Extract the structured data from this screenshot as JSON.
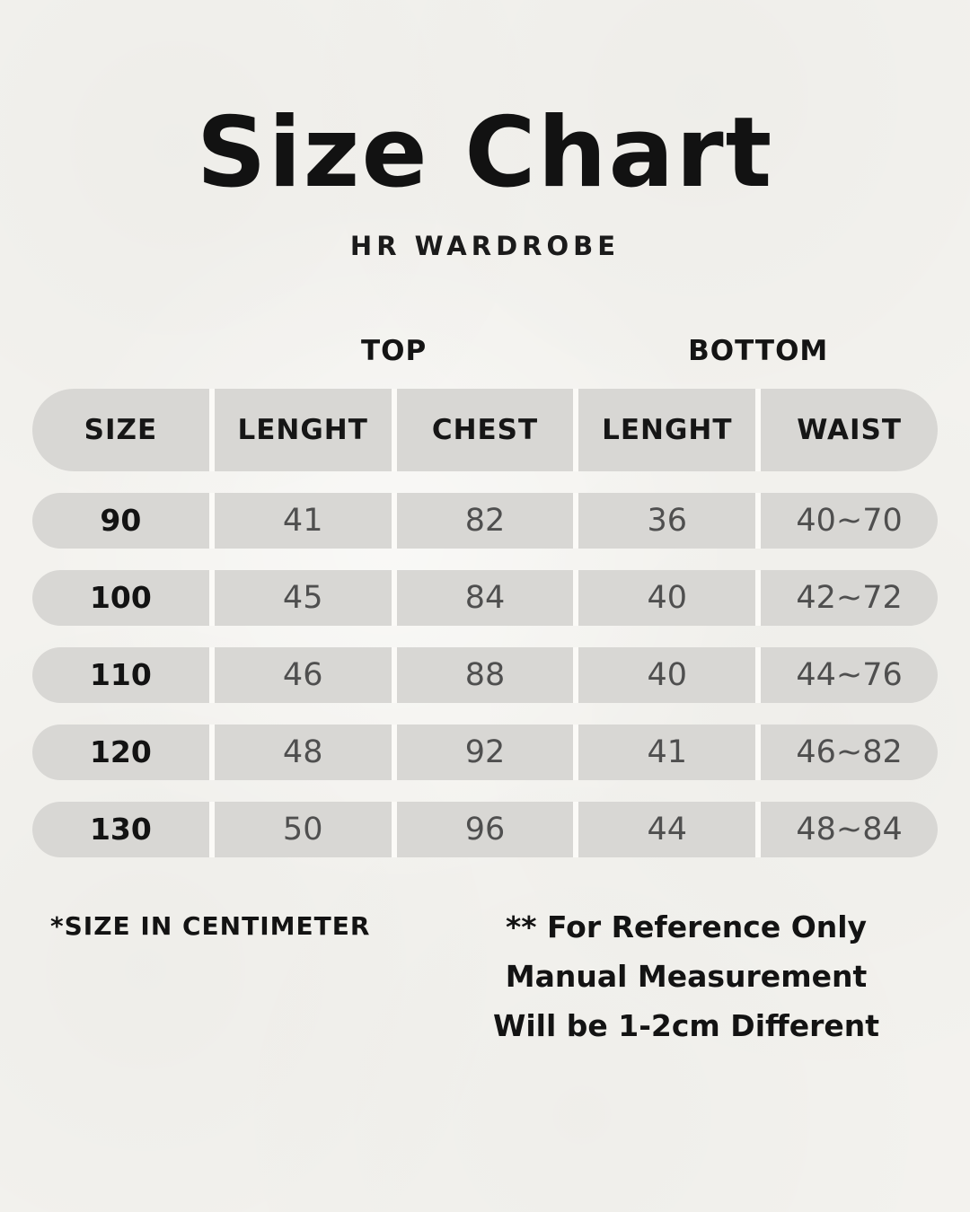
{
  "colors": {
    "background": "#f3f2ee",
    "cell_fill": "#d8d7d4",
    "divider": "#fbfaf7",
    "heading_text": "#131313",
    "value_text": "#4f4f4f"
  },
  "chart_data": {
    "type": "table",
    "title": "Size Chart",
    "subtitle": "HR WARDROBE",
    "group_headers": [
      {
        "label": "TOP",
        "spans": [
          "LENGHT",
          "CHEST"
        ]
      },
      {
        "label": "BOTTOM",
        "spans": [
          "LENGHT",
          "WAIST"
        ]
      }
    ],
    "columns": [
      "SIZE",
      "LENGHT",
      "CHEST",
      "LENGHT",
      "WAIST"
    ],
    "rows": [
      [
        "90",
        "41",
        "82",
        "36",
        "40~70"
      ],
      [
        "100",
        "45",
        "84",
        "40",
        "42~72"
      ],
      [
        "110",
        "46",
        "88",
        "40",
        "44~76"
      ],
      [
        "120",
        "48",
        "92",
        "41",
        "46~82"
      ],
      [
        "130",
        "50",
        "96",
        "44",
        "48~84"
      ]
    ],
    "unit_note": "*SIZE IN CENTIMETER",
    "reference_note": [
      "** For Reference Only",
      "Manual Measurement",
      "Will be 1-2cm Different"
    ]
  }
}
